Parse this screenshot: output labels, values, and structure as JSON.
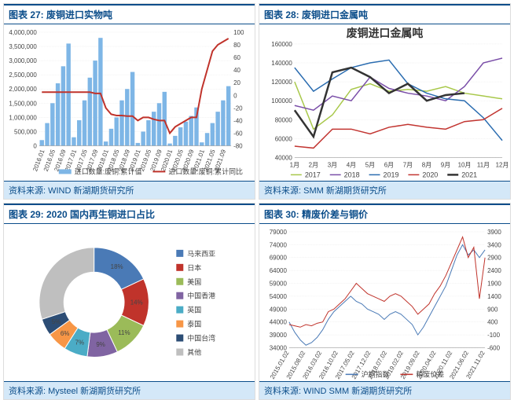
{
  "panels": [
    {
      "title": "图表 27: 废铜进口实物吨",
      "footer": "资料来源: WIND 新湖期货研究所",
      "chart": {
        "type": "combo-bar-line",
        "x_labels": [
          "2016.01",
          "2016.05",
          "2016.09",
          "2017.01",
          "2017.05",
          "2017.09",
          "2018.01",
          "2018.05",
          "2018.09",
          "2019.01",
          "2019.05",
          "2019.09",
          "2020.01",
          "2020.05",
          "2020.09",
          "2021.01",
          "2021.05",
          "2021.09"
        ],
        "left_axis": {
          "min": 0,
          "max": 4000000,
          "ticks": [
            0,
            500000,
            1000000,
            1500000,
            2000000,
            2500000,
            3000000,
            3500000,
            4000000
          ]
        },
        "right_axis": {
          "min": -80,
          "max": 100,
          "ticks": [
            -80,
            -60,
            -40,
            -20,
            0,
            20,
            40,
            60,
            80,
            100
          ]
        },
        "bar_series": {
          "name": "进口数量:废铜:累计值",
          "color": "#7eb6e6",
          "values": [
            200000,
            800000,
            1500000,
            2200000,
            2800000,
            3600000,
            300000,
            900000,
            1600000,
            2400000,
            3000000,
            3800000,
            150000,
            600000,
            1000000,
            1600000,
            2000000,
            2600000,
            100000,
            500000,
            900000,
            1200000,
            1500000,
            1900000,
            80000,
            350000,
            650000,
            850000,
            1050000,
            1350000,
            120000,
            450000,
            800000,
            1200000,
            1600000,
            2100000
          ]
        },
        "line_series": {
          "name": "进口数量:废铜:累计同比",
          "color": "#c0332b",
          "width": 2,
          "values": [
            5,
            5,
            5,
            5,
            5,
            5,
            5,
            5,
            5,
            5,
            3,
            3,
            -20,
            -30,
            -32,
            -32,
            -33,
            -33,
            -40,
            -35,
            -35,
            -38,
            -40,
            -40,
            -60,
            -50,
            -45,
            -40,
            -35,
            -35,
            10,
            40,
            70,
            80,
            85,
            90
          ]
        },
        "background_color": "#ffffff",
        "grid_color": "#e6e6e6",
        "axis_fontsize": 8,
        "legend_fontsize": 9
      }
    },
    {
      "title": "图表 28: 废铜进口金属吨",
      "footer": "资料来源: SMM 新湖期货研究所",
      "chart": {
        "type": "multi-line",
        "inner_title": "废铜进口金属吨",
        "x_labels": [
          "1月",
          "2月",
          "3月",
          "4月",
          "5月",
          "6月",
          "7月",
          "8月",
          "9月",
          "10月",
          "11月",
          "12月"
        ],
        "y_axis": {
          "min": 40000,
          "max": 160000,
          "ticks": [
            40000,
            60000,
            80000,
            100000,
            120000,
            140000,
            160000
          ]
        },
        "series": [
          {
            "name": "2017",
            "color": "#a8c84a",
            "width": 1.5,
            "values": [
              120000,
              70000,
              85000,
              112000,
              118000,
              110000,
              112000,
              110000,
              115000,
              108000,
              105000,
              102000
            ]
          },
          {
            "name": "2018",
            "color": "#7a4ea8",
            "width": 1.5,
            "values": [
              95000,
              90000,
              105000,
              100000,
              125000,
              113000,
              108000,
              105000,
              100000,
              115000,
              140000,
              145000
            ]
          },
          {
            "name": "2019",
            "color": "#2a6cb0",
            "width": 1.5,
            "values": [
              135000,
              110000,
              123000,
              135000,
              140000,
              143000,
              118000,
              108000,
              102000,
              100000,
              82000,
              58000
            ]
          },
          {
            "name": "2020",
            "color": "#c23531",
            "width": 1.5,
            "values": [
              52000,
              50000,
              70000,
              70000,
              65000,
              72000,
              75000,
              72000,
              70000,
              78000,
              80000,
              92000
            ]
          },
          {
            "name": "2021",
            "color": "#333333",
            "width": 2.5,
            "values": [
              90000,
              62000,
              130000,
              135000,
              125000,
              108000,
              118000,
              100000,
              106000,
              108000,
              null,
              null
            ]
          }
        ],
        "background_color": "#ffffff",
        "grid_color": "#e6e6e6",
        "axis_fontsize": 8
      }
    },
    {
      "title": "图表 29: 2020 国内再生铜进口占比",
      "footer": "资料来源: Mysteel 新湖期货研究所",
      "chart": {
        "type": "donut",
        "inner_radius_ratio": 0.55,
        "label_fontsize": 9,
        "slices": [
          {
            "name": "马来西亚",
            "value": 18,
            "color": "#4a7ab6"
          },
          {
            "name": "日本",
            "value": 14,
            "color": "#c0332b"
          },
          {
            "name": "美国",
            "value": 11,
            "color": "#9bbb59"
          },
          {
            "name": "中国香港",
            "value": 9,
            "color": "#8064a2"
          },
          {
            "name": "英国",
            "value": 7,
            "color": "#4bacc6"
          },
          {
            "name": "泰国",
            "value": 6,
            "color": "#f79646"
          },
          {
            "name": "中国台湾",
            "value": 5,
            "color": "#2c4d75"
          },
          {
            "name": "其他",
            "value": 30,
            "color": "#bfbfbf"
          }
        ],
        "legend_items": [
          "马来西亚",
          "日本",
          "美国",
          "中国香港",
          "英国",
          "泰国",
          "中国台湾",
          "其他"
        ],
        "legend_colors": [
          "#4a7ab6",
          "#c0332b",
          "#9bbb59",
          "#8064a2",
          "#4bacc6",
          "#f79646",
          "#2c4d75",
          "#bfbfbf"
        ],
        "background_color": "#ffffff"
      }
    },
    {
      "title": "图表 30: 精废价差与铜价",
      "footer": "资料来源: WIND SMM 新湖期货研究所",
      "chart": {
        "type": "dual-axis-line",
        "x_labels": [
          "2015.01.02",
          "2015.08.02",
          "2016.03.02",
          "2016.10.02",
          "2017.05.02",
          "2017.12.02",
          "2018.07.02",
          "2019.02.02",
          "2019.09.02",
          "2020.04.02",
          "2020.11.02",
          "2021.06.02",
          "2021.11.02"
        ],
        "left_axis": {
          "min": 34000,
          "max": 79000,
          "ticks": [
            34000,
            39000,
            44000,
            49000,
            54000,
            59000,
            64000,
            69000,
            74000,
            79000
          ]
        },
        "right_axis": {
          "min": -600,
          "max": 3900,
          "ticks": [
            -600,
            -100,
            400,
            900,
            1400,
            1900,
            2400,
            2900,
            3400,
            3900
          ]
        },
        "series_left": {
          "name": "沪铜指数",
          "color": "#4a7ab6",
          "width": 1,
          "values": [
            44000,
            40000,
            37000,
            35000,
            36000,
            38000,
            41000,
            45000,
            48000,
            50000,
            52000,
            54000,
            52000,
            51000,
            49000,
            48000,
            47000,
            45000,
            47000,
            48000,
            47000,
            45000,
            43000,
            39000,
            42000,
            46000,
            50000,
            54000,
            58000,
            64000,
            70000,
            74000,
            70000,
            72000,
            69000,
            72000
          ]
        },
        "series_right": {
          "name": "精废价差",
          "color": "#c0332b",
          "width": 1,
          "values": [
            300,
            250,
            200,
            300,
            250,
            350,
            400,
            800,
            900,
            1100,
            1300,
            1600,
            1900,
            1700,
            1500,
            1400,
            1300,
            1200,
            1400,
            1500,
            1400,
            1200,
            1000,
            700,
            900,
            1100,
            1500,
            1800,
            2200,
            2700,
            3200,
            3700,
            2900,
            3300,
            1300,
            2900
          ]
        },
        "background_color": "#ffffff",
        "grid_color": "#e6e6e6",
        "axis_fontsize": 7
      }
    }
  ]
}
